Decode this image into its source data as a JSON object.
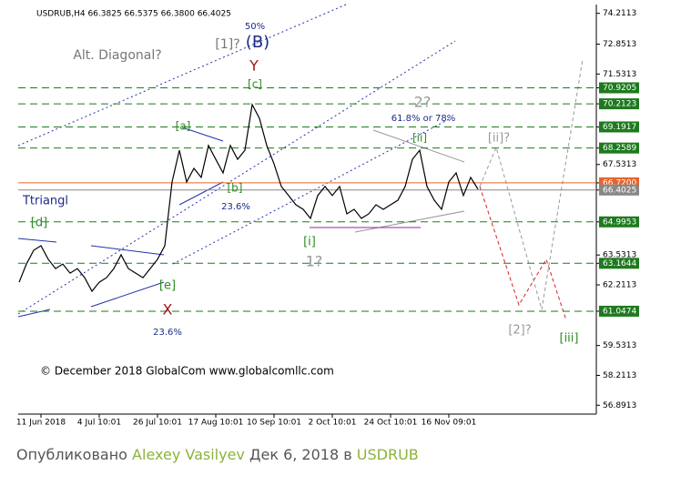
{
  "chart_data": {
    "type": "line",
    "title": "USDRUB,H4 66.3825 66.5375 66.3800 66.4025",
    "copyright": "© December 2018 GlobalCom www.globalcomllc.com",
    "categories": [
      null,
      null,
      null,
      "11 Jun 2018",
      null,
      null,
      null,
      null,
      null,
      null,
      null,
      "4 Jul 10:01",
      null,
      null,
      null,
      null,
      null,
      null,
      null,
      "26 Jul 10:01",
      null,
      null,
      null,
      null,
      null,
      null,
      null,
      "17 Aug 10:01",
      null,
      null,
      null,
      null,
      null,
      null,
      null,
      "10 Sep 10:01",
      null,
      null,
      null,
      null,
      null,
      null,
      null,
      "2 Oct 10:01",
      null,
      null,
      null,
      null,
      null,
      null,
      null,
      "24 Oct 10:01",
      null,
      null,
      null,
      null,
      null,
      null,
      null,
      "16 Nov 09:01",
      null,
      null,
      null,
      null
    ],
    "series": [
      {
        "name": "USDRUB",
        "color": "#000000",
        "values": [
          62.33,
          63.13,
          63.74,
          63.94,
          63.34,
          62.93,
          63.13,
          62.73,
          62.93,
          62.53,
          61.93,
          62.33,
          62.53,
          62.93,
          63.54,
          62.93,
          62.73,
          62.53,
          62.93,
          63.34,
          63.94,
          66.76,
          68.16,
          66.76,
          67.36,
          66.96,
          68.37,
          67.76,
          67.16,
          68.37,
          67.76,
          68.16,
          70.18,
          69.57,
          68.37,
          67.56,
          66.56,
          66.16,
          65.75,
          65.55,
          65.15,
          66.16,
          66.56,
          66.16,
          66.56,
          65.35,
          65.55,
          65.15,
          65.35,
          65.75,
          65.55,
          65.75,
          65.95,
          66.56,
          67.76,
          68.16,
          66.56,
          65.95,
          65.55,
          66.76,
          67.16,
          66.16,
          66.96,
          66.44
        ]
      }
    ],
    "ylim": [
      56.5,
      74.6
    ],
    "yticks": [
      74.2113,
      72.8513,
      71.5313,
      70.9205,
      70.2123,
      69.1917,
      68.2589,
      67.5313,
      {
        "value": 66.72,
        "label": "66.7200"
      },
      66.4025,
      64.9953,
      63.5313,
      63.1644,
      62.2113,
      61.0474,
      59.5313,
      58.2113,
      56.8913
    ],
    "levels": [
      {
        "value": 70.9205,
        "color": "#1e7a1e"
      },
      {
        "value": 70.2123,
        "color": "#1e7a1e"
      },
      {
        "value": 69.1917,
        "color": "#1e7a1e"
      },
      {
        "value": 68.2589,
        "color": "#1e7a1e"
      },
      {
        "value": 66.72,
        "color": "#e8642c"
      },
      {
        "value": 66.4025,
        "color": "#888888"
      },
      {
        "value": 64.9953,
        "color": "#1e7a1e"
      },
      {
        "value": 63.1644,
        "color": "#1e7a1e"
      },
      {
        "value": 61.0474,
        "color": "#1e7a1e"
      }
    ],
    "annotations": [
      "[1]?",
      "(B)",
      "Y",
      "50%",
      "Alt. Diagonal?",
      "[c]",
      "[a]",
      "[b]",
      "23.6%",
      "Ttriangl",
      "[d]",
      "[e]",
      "X",
      "23.6%",
      "[i]",
      "1?",
      "2?",
      "61.8% or 78%",
      "[ii]",
      "[ii]?",
      "[2]?",
      "[iii]"
    ]
  },
  "footer": {
    "prefix": "Опубликовано",
    "author": "Alexey Vasilyev",
    "date": "Дек 6, 2018 в",
    "symbol": "USDRUB"
  }
}
